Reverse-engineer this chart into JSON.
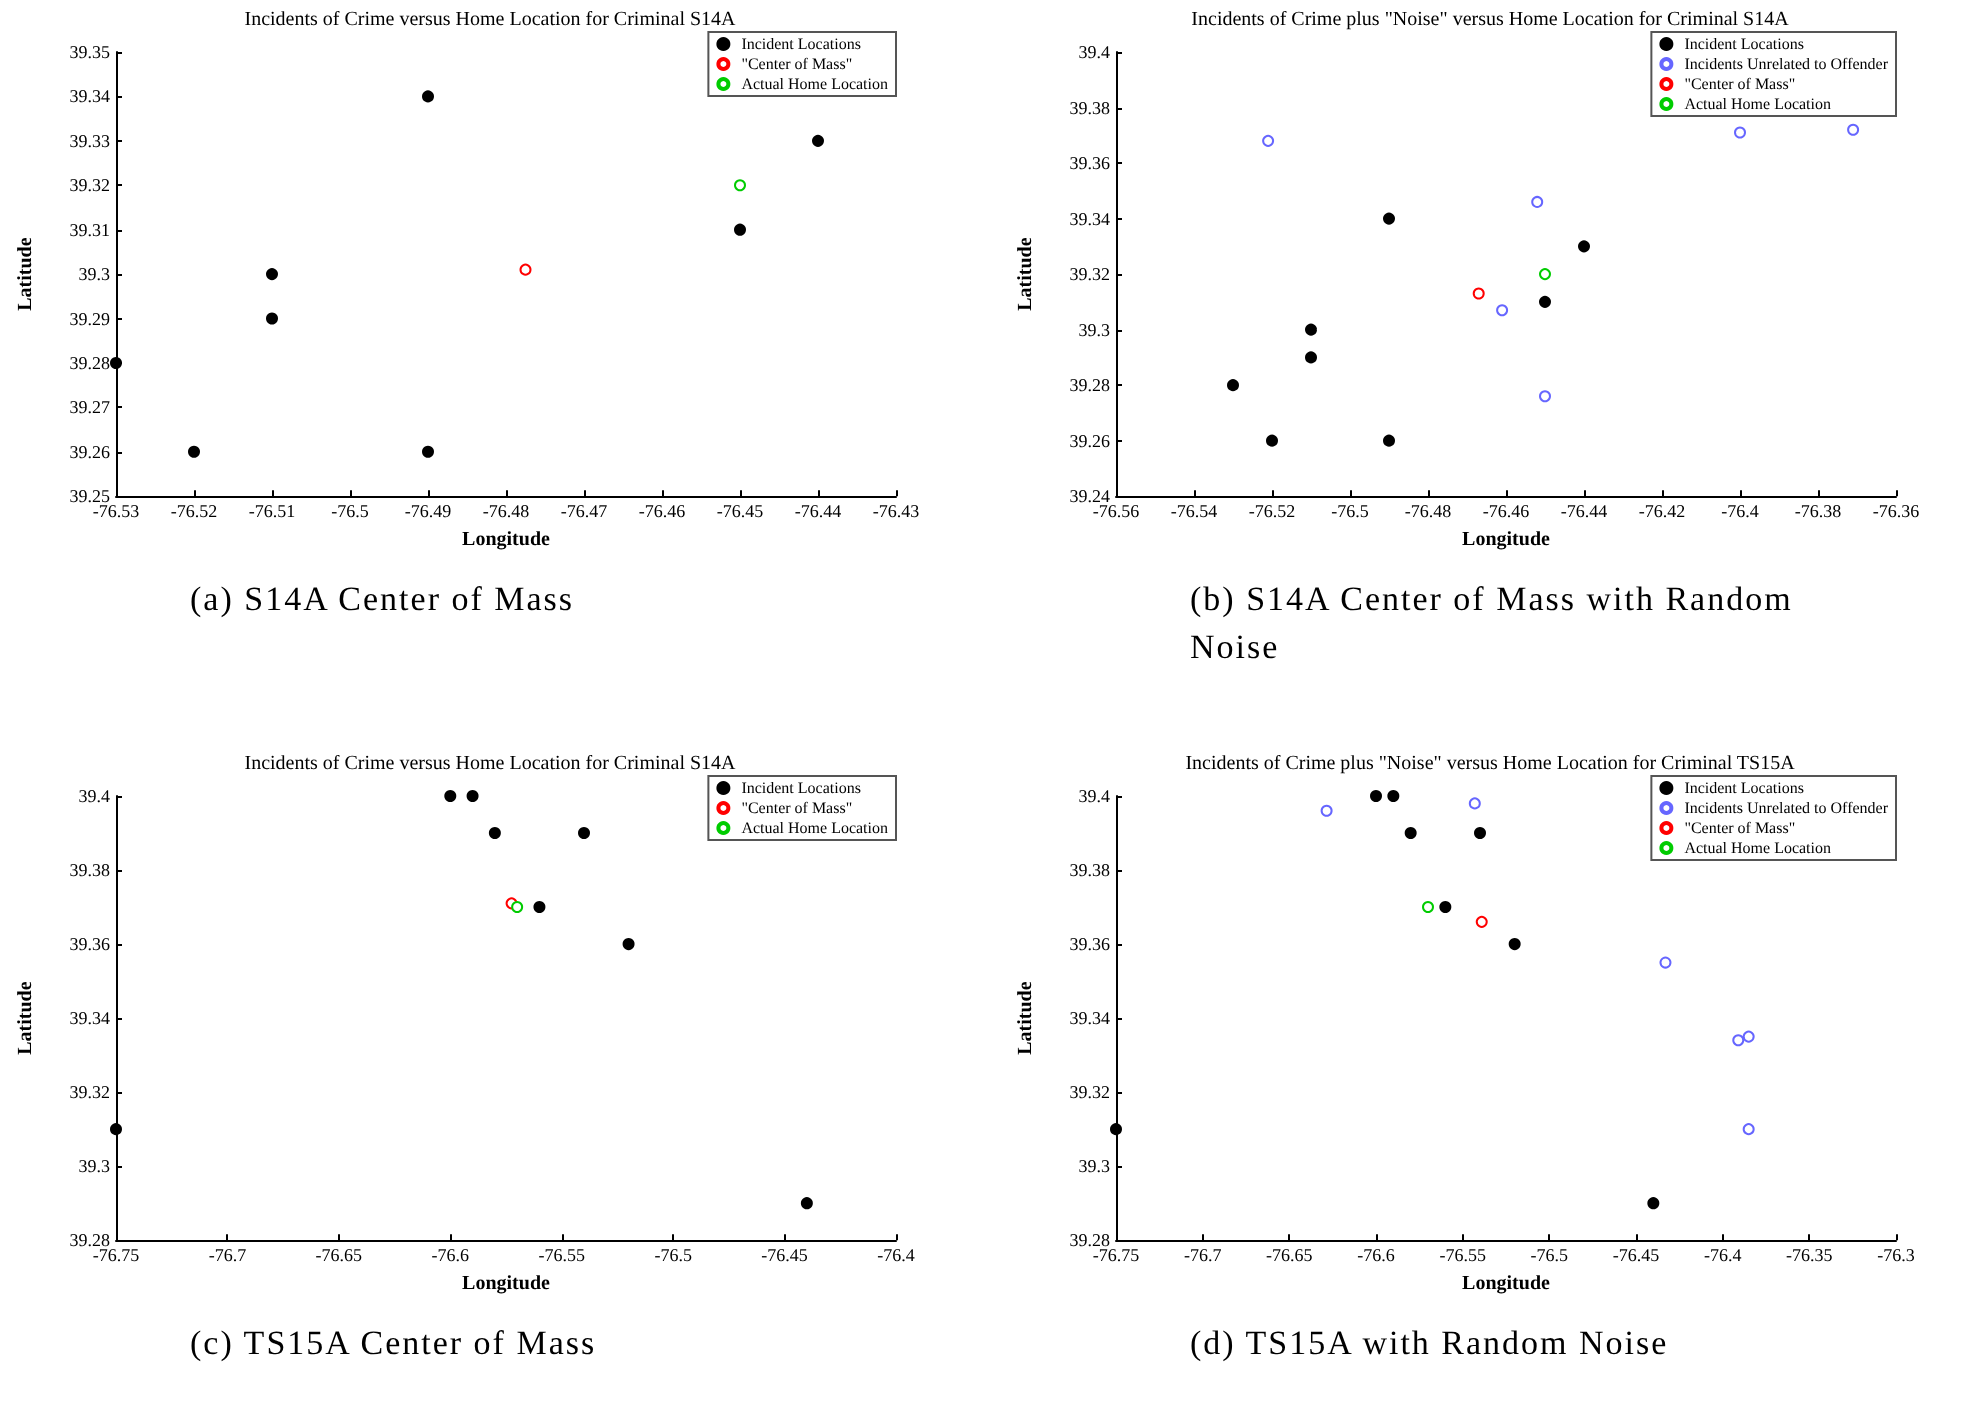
{
  "chart_data": [
    {
      "type": "scatter",
      "title": "Incidents of Crime versus Home Location for Criminal S14A",
      "xlabel": "Longitude",
      "ylabel": "Latitude",
      "annotations": [
        "(a) S14A Center of Mass"
      ],
      "xlim": [
        -76.53,
        -76.43
      ],
      "xticks": [
        -76.53,
        -76.52,
        -76.51,
        -76.5,
        -76.49,
        -76.48,
        -76.47,
        -76.46,
        -76.45,
        -76.44,
        -76.43
      ],
      "ylim": [
        39.25,
        39.35
      ],
      "yticks": [
        39.25,
        39.26,
        39.27,
        39.28,
        39.29,
        39.3,
        39.31,
        39.32,
        39.33,
        39.34,
        39.35
      ],
      "grid": false,
      "legend": "top right",
      "marker": "circle",
      "series": [
        {
          "name": "Incident Locations",
          "color": "#000000",
          "x": [
            -76.53,
            -76.52,
            -76.51,
            -76.51,
            -76.49,
            -76.49,
            -76.45,
            -76.44
          ],
          "values": [
            39.28,
            39.26,
            39.3,
            39.29,
            39.34,
            39.26,
            39.31,
            39.33
          ]
        },
        {
          "name": "\"Center of Mass\"",
          "color": "#ff0000",
          "x": [
            -76.4775
          ],
          "values": [
            39.301
          ]
        },
        {
          "name": "Actual Home Location",
          "color": "#00cc00",
          "x": [
            -76.45
          ],
          "values": [
            39.32
          ]
        }
      ]
    },
    {
      "type": "scatter",
      "title": "Incidents of Crime plus \"Noise\" versus Home Location for Criminal S14A",
      "xlabel": "Longitude",
      "ylabel": "Latitude",
      "annotations": [
        "(b) S14A Center of Mass with Random Noise"
      ],
      "xlim": [
        -76.56,
        -76.36
      ],
      "xticks": [
        -76.56,
        -76.54,
        -76.52,
        -76.5,
        -76.48,
        -76.46,
        -76.44,
        -76.42,
        -76.4,
        -76.38,
        -76.36
      ],
      "ylim": [
        39.24,
        39.4
      ],
      "yticks": [
        39.24,
        39.26,
        39.28,
        39.3,
        39.32,
        39.34,
        39.36,
        39.38,
        39.4
      ],
      "grid": false,
      "legend": "top right",
      "marker": "circle",
      "series": [
        {
          "name": "Incident Locations",
          "color": "#000000",
          "x": [
            -76.53,
            -76.52,
            -76.51,
            -76.51,
            -76.49,
            -76.49,
            -76.45,
            -76.44
          ],
          "values": [
            39.28,
            39.26,
            39.3,
            39.29,
            39.34,
            39.26,
            39.31,
            39.33
          ]
        },
        {
          "name": "Incidents Unrelated to Offender",
          "color": "#6666ff",
          "x": [
            -76.521,
            -76.452,
            -76.461,
            -76.45,
            -76.4,
            -76.371
          ],
          "values": [
            39.368,
            39.346,
            39.307,
            39.276,
            39.371,
            39.372
          ]
        },
        {
          "name": "\"Center of Mass\"",
          "color": "#ff0000",
          "x": [
            -76.467
          ],
          "values": [
            39.313
          ]
        },
        {
          "name": "Actual Home Location",
          "color": "#00cc00",
          "x": [
            -76.45
          ],
          "values": [
            39.32
          ]
        }
      ]
    },
    {
      "type": "scatter",
      "title": "Incidents of Crime versus Home Location for Criminal S14A",
      "xlabel": "Longitude",
      "ylabel": "Latitude",
      "annotations": [
        "(c) TS15A Center of Mass"
      ],
      "xlim": [
        -76.75,
        -76.4
      ],
      "xticks": [
        -76.75,
        -76.7,
        -76.65,
        -76.6,
        -76.55,
        -76.5,
        -76.45,
        -76.4
      ],
      "ylim": [
        39.28,
        39.4
      ],
      "yticks": [
        39.28,
        39.3,
        39.32,
        39.34,
        39.36,
        39.38,
        39.4
      ],
      "grid": false,
      "legend": "top right",
      "marker": "circle",
      "series": [
        {
          "name": "Incident Locations",
          "color": "#000000",
          "x": [
            -76.75,
            -76.6,
            -76.59,
            -76.58,
            -76.54,
            -76.56,
            -76.52,
            -76.44
          ],
          "values": [
            39.31,
            39.4,
            39.4,
            39.39,
            39.39,
            39.37,
            39.36,
            39.29
          ]
        },
        {
          "name": "\"Center of Mass\"",
          "color": "#ff0000",
          "x": [
            -76.5725
          ],
          "values": [
            39.371
          ]
        },
        {
          "name": "Actual Home Location",
          "color": "#00cc00",
          "x": [
            -76.57
          ],
          "values": [
            39.37
          ]
        }
      ]
    },
    {
      "type": "scatter",
      "title": "Incidents of Crime plus \"Noise\" versus Home Location for Criminal TS15A",
      "xlabel": "Longitude",
      "ylabel": "Latitude",
      "annotations": [
        "(d) TS15A with Random Noise"
      ],
      "xlim": [
        -76.75,
        -76.3
      ],
      "xticks": [
        -76.75,
        -76.7,
        -76.65,
        -76.6,
        -76.55,
        -76.5,
        -76.45,
        -76.4,
        -76.35,
        -76.3
      ],
      "ylim": [
        39.28,
        39.4
      ],
      "yticks": [
        39.28,
        39.3,
        39.32,
        39.34,
        39.36,
        39.38,
        39.4
      ],
      "grid": false,
      "legend": "top right",
      "marker": "circle",
      "series": [
        {
          "name": "Incident Locations",
          "color": "#000000",
          "x": [
            -76.75,
            -76.6,
            -76.59,
            -76.58,
            -76.54,
            -76.56,
            -76.52,
            -76.44
          ],
          "values": [
            39.31,
            39.4,
            39.4,
            39.39,
            39.39,
            39.37,
            39.36,
            39.29
          ]
        },
        {
          "name": "Incidents Unrelated to Offender",
          "color": "#6666ff",
          "x": [
            -76.6285,
            -76.543,
            -76.433,
            -76.391,
            -76.385,
            -76.385
          ],
          "values": [
            39.396,
            39.398,
            39.355,
            39.334,
            39.335,
            39.31
          ]
        },
        {
          "name": "\"Center of Mass\"",
          "color": "#ff0000",
          "x": [
            -76.539
          ],
          "values": [
            39.366
          ]
        },
        {
          "name": "Actual Home Location",
          "color": "#00cc00",
          "x": [
            -76.57
          ],
          "values": [
            39.37
          ]
        }
      ]
    }
  ]
}
